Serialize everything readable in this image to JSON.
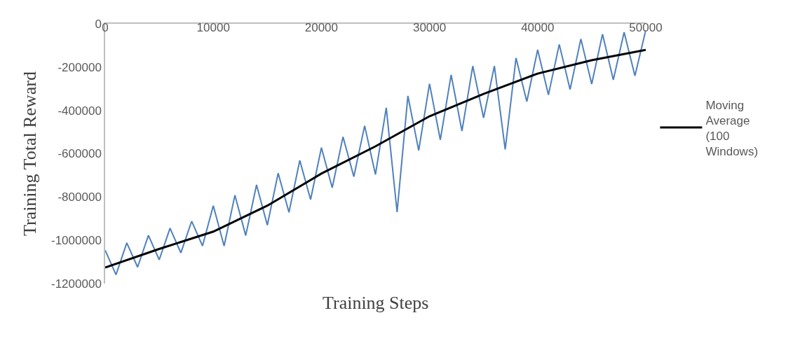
{
  "chart_data": {
    "type": "line",
    "xlabel": "Training Steps",
    "ylabel": "Training Total Reward",
    "x": [
      0,
      5000,
      10000,
      15000,
      20000,
      25000,
      30000,
      35000,
      40000,
      45000,
      50000
    ],
    "series": [
      {
        "color": "#4f81bd",
        "x": [
          0,
          1000,
          2000,
          3000,
          4000,
          5000,
          6000,
          7000,
          8000,
          9000,
          10000,
          11000,
          12000,
          13000,
          14000,
          15000,
          16000,
          17000,
          18000,
          19000,
          20000,
          21000,
          22000,
          23000,
          24000,
          25000,
          26000,
          27000,
          28000,
          29000,
          30000,
          31000,
          32000,
          33000,
          34000,
          35000,
          36000,
          37000,
          38000,
          39000,
          40000,
          41000,
          42000,
          43000,
          44000,
          45000,
          46000,
          47000,
          48000,
          49000,
          50000
        ],
        "values": [
          -1046000,
          -1159000,
          -1012000,
          -1124000,
          -977000,
          -1090000,
          -944000,
          -1058000,
          -912000,
          -1026000,
          -840000,
          -1026000,
          -792000,
          -978000,
          -744000,
          -930000,
          -690000,
          -871000,
          -631000,
          -812000,
          -572000,
          -757000,
          -522000,
          -706000,
          -471000,
          -696000,
          -388000,
          -870000,
          -333000,
          -585000,
          -277000,
          -536000,
          -236000,
          -495000,
          -195000,
          -434000,
          -195000,
          -580000,
          -158000,
          -359000,
          -120000,
          -328000,
          -95000,
          -303000,
          -70000,
          -278000,
          -48000,
          -259000,
          -39000,
          -240000,
          -30000
        ]
      },
      {
        "name": "Moving Average (100 Windows)",
        "color": "#000000",
        "values": [
          -1126000,
          -1040000,
          -960000,
          -840000,
          -692000,
          -566000,
          -427000,
          -324000,
          -230000,
          -168000,
          -120000
        ]
      }
    ],
    "xlim": [
      0,
      50000
    ],
    "xticks": [
      0,
      10000,
      20000,
      30000,
      40000,
      50000
    ],
    "ylim": [
      -1200000,
      0
    ],
    "yticks": [
      -1200000,
      -1000000,
      -800000,
      -600000,
      -400000,
      -200000,
      0
    ],
    "legend": "right",
    "marker": "none",
    "line_style": "solid"
  }
}
